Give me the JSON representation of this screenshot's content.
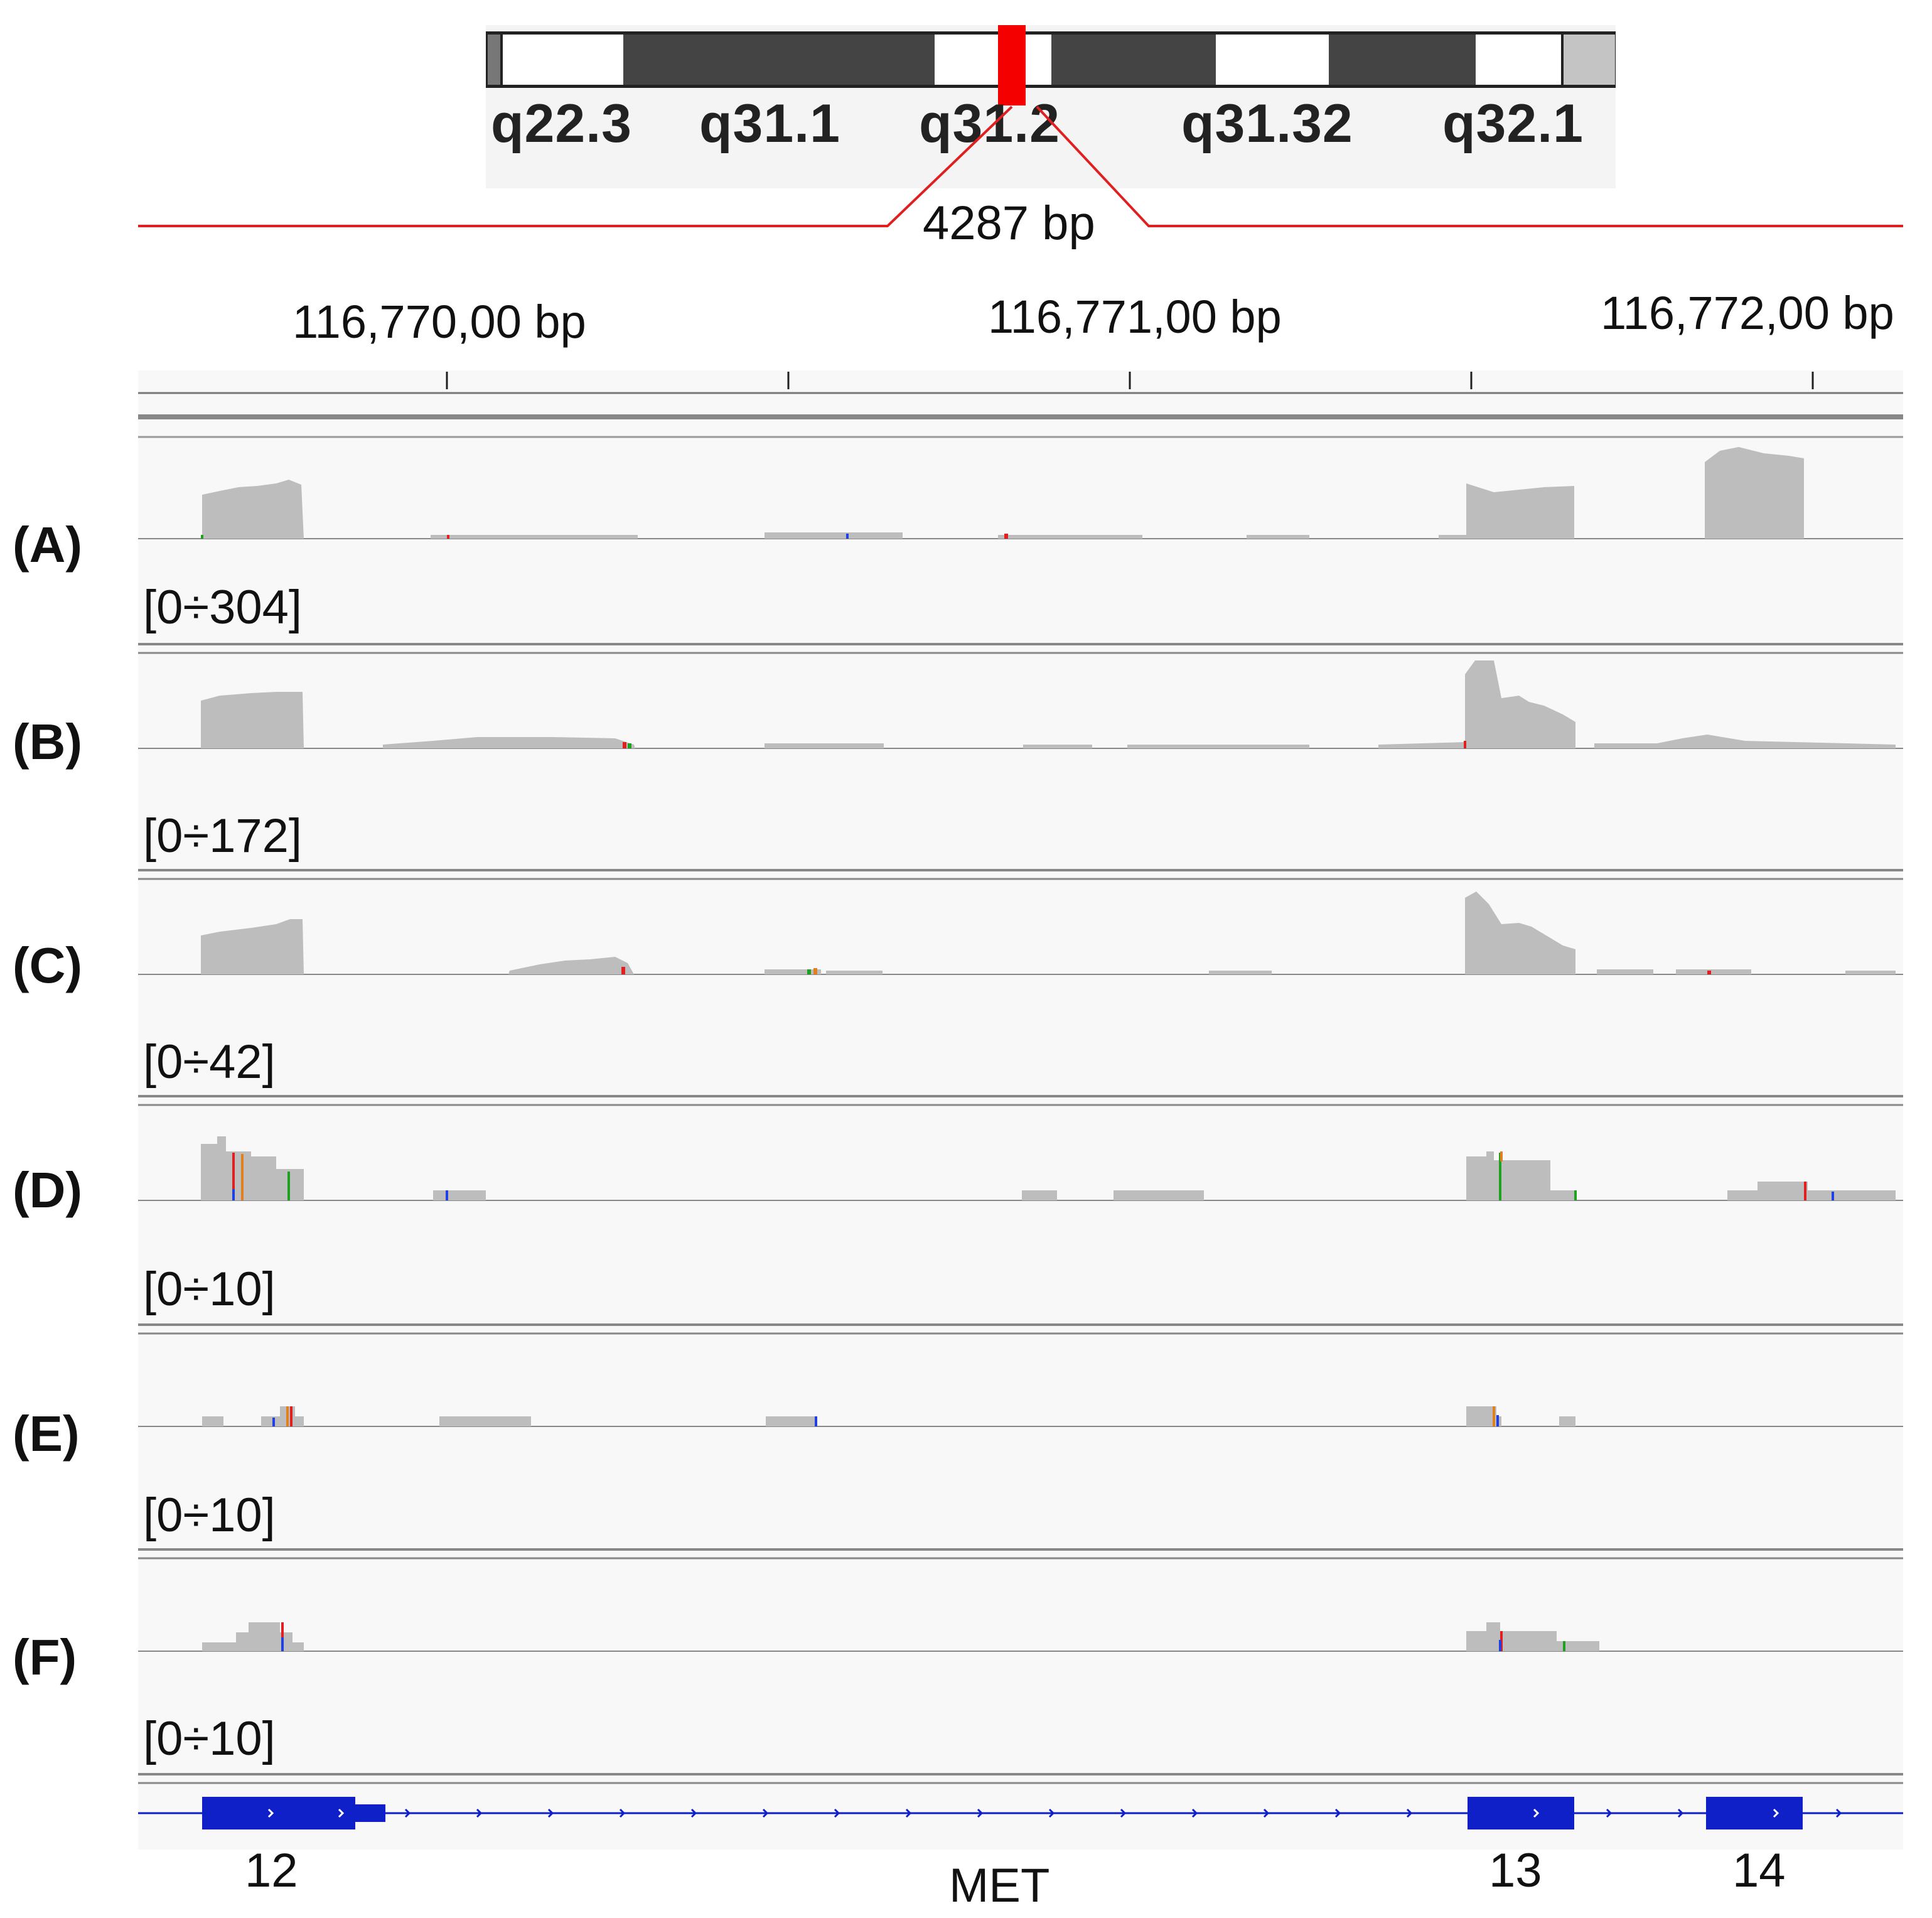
{
  "ideogram": {
    "bands": [
      "q22.3",
      "q31.1",
      "q31.2",
      "q31.32",
      "q32.1"
    ],
    "highlight_color": "#f40000"
  },
  "region": {
    "span_label": "4287 bp"
  },
  "ruler": {
    "labels": [
      "116,770,00 bp",
      "116,771,00 bp",
      "116,772,00 bp"
    ]
  },
  "tracks": [
    {
      "id": "A",
      "label": "(A)",
      "range": "[0÷304]"
    },
    {
      "id": "B",
      "label": "(B)",
      "range": "[0÷172]"
    },
    {
      "id": "C",
      "label": "(C)",
      "range": "[0÷42]"
    },
    {
      "id": "D",
      "label": "(D)",
      "range": "[0÷10]"
    },
    {
      "id": "E",
      "label": "(E)",
      "range": "[0÷10]"
    },
    {
      "id": "F",
      "label": "(F)",
      "range": "[0÷10]"
    }
  ],
  "gene": {
    "name": "MET",
    "exons": [
      "12",
      "13",
      "14"
    ],
    "color": "#1020c8"
  },
  "colors": {
    "coverage": "#bdbdbd",
    "mismatch_red": "#e02020",
    "mismatch_blue": "#2040e0",
    "mismatch_green": "#20a020",
    "mismatch_orange": "#e08020"
  }
}
